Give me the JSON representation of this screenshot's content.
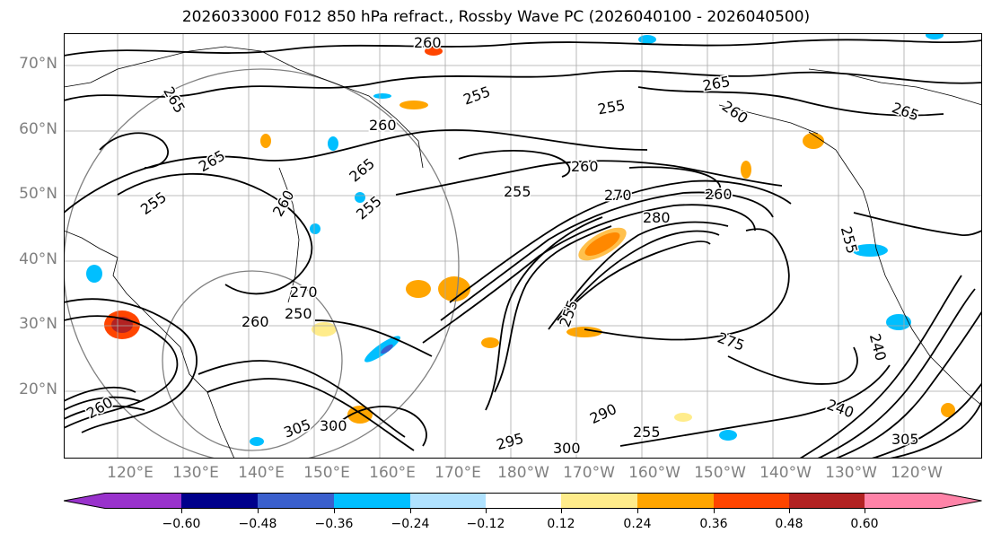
{
  "title": "2026033000 F012 850 hPa refract., Rossby Wave PC (2026040100 - 2026040500)",
  "latitude_labels": [
    "70°N",
    "60°N",
    "50°N",
    "40°N",
    "30°N",
    "20°N"
  ],
  "longitude_labels": [
    "120°E",
    "130°E",
    "140°E",
    "150°E",
    "160°E",
    "170°E",
    "180°W",
    "170°W",
    "160°W",
    "150°W",
    "140°W",
    "130°W",
    "120°W"
  ],
  "contour_labels": [
    "260",
    "265",
    "255",
    "265",
    "260",
    "255",
    "260",
    "265",
    "255",
    "265",
    "260",
    "255",
    "260",
    "265",
    "255",
    "270",
    "280",
    "260",
    "255",
    "270",
    "260",
    "250",
    "255",
    "275",
    "240",
    "260",
    "305",
    "300",
    "295",
    "300",
    "290",
    "240",
    "305",
    "255"
  ],
  "colorbar": {
    "ticks": [
      "−0.60",
      "−0.48",
      "−0.36",
      "−0.24",
      "−0.12",
      "0.12",
      "0.24",
      "0.36",
      "0.48",
      "0.60"
    ],
    "colors": [
      "#9932cc",
      "#00008b",
      "#3a5fcd",
      "#00bfff",
      "#b0e2ff",
      "#ffffff",
      "#ffec8b",
      "#ffa500",
      "#ff4500",
      "#b22222",
      "#ff83a8"
    ]
  },
  "colors": {
    "positive_anomaly": "#ffa500",
    "negative_anomaly": "#00bfff",
    "contour": "#000000",
    "axis_labels": "#808080"
  }
}
